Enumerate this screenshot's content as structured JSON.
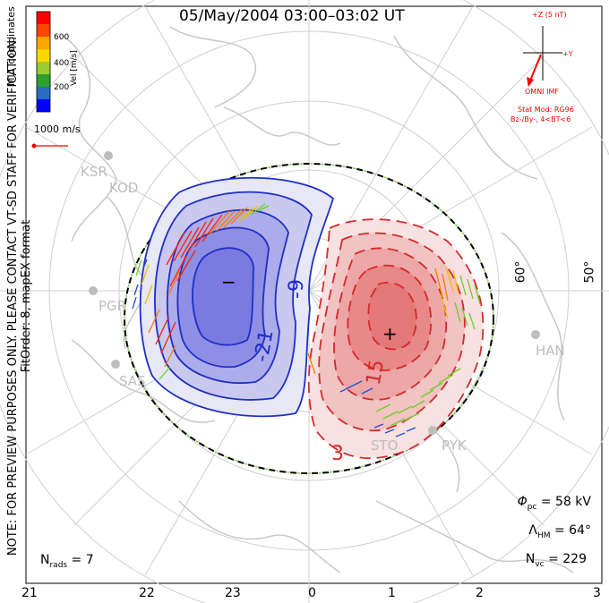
{
  "title": "05/May/2004 03:00–03:02 UT",
  "side_note": "NOTE: FOR PREVIEW PURPOSES ONLY. PLEASE CONTACT VT-SD STAFF FOR VERIFICATION.",
  "fit_order": "FitOrder: 8, mapEX format",
  "coordinates": "MLT coordinates",
  "colorbar": {
    "label": "Vel [m/s]",
    "ticks": [
      "600",
      "400",
      "200"
    ],
    "colors": [
      "#0000ff",
      "#2a6cc4",
      "#2ca02c",
      "#9acd32",
      "#ffd700",
      "#ffa500",
      "#ff4500",
      "#ff0000"
    ]
  },
  "reference_vector": "1000 m/s",
  "imf": {
    "z_label": "+Z (5 nT)",
    "y_label": "+Y",
    "source": "OMNI IMF",
    "stat_mod": "Stat Mod: RG96",
    "condition": "Bz-/By-, 4<BT<6"
  },
  "stats": {
    "phi_pc": "58 kV",
    "lambda_hm": "64°",
    "n_vc": "229",
    "n_rads": "7"
  },
  "mlt_ticks": [
    "21",
    "22",
    "23",
    "0",
    "1",
    "2",
    "3"
  ],
  "latitude_labels": [
    "60°",
    "50°"
  ],
  "stations": [
    "KSR",
    "KOD",
    "PGR",
    "SAS",
    "HAN",
    "STO",
    "PYK"
  ],
  "contours": {
    "negative_labels": [
      "-9",
      "-21"
    ],
    "positive_labels": [
      "15",
      "3"
    ],
    "min_marker": "−",
    "max_marker": "+"
  },
  "colors": {
    "negative": "#1f2fc8",
    "positive": "#d42a2a",
    "coast": "#c8c8c8",
    "imf": "#ff0000"
  }
}
